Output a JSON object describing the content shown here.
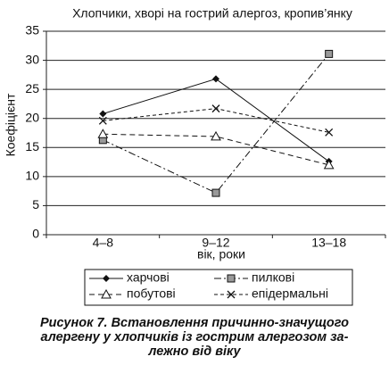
{
  "chart_data": {
    "type": "line",
    "title": "Хлопчики, хворі на гострий алергоз, кропив’янку",
    "x_label": "вік, роки",
    "y_label": "Коефіцієнт",
    "categories": [
      "4–8",
      "9–12",
      "13–18"
    ],
    "series": [
      {
        "name": "харчові",
        "color": "#111111",
        "values": [
          20.8,
          26.8,
          12.6
        ]
      },
      {
        "name": "пилкові",
        "color": "#111111",
        "values": [
          16.3,
          7.2,
          31.1
        ]
      },
      {
        "name": "побутові",
        "color": "#111111",
        "values": [
          17.3,
          16.9,
          12.0
        ]
      },
      {
        "name": "епідермальні",
        "color": "#111111",
        "values": [
          19.6,
          21.7,
          17.6
        ]
      }
    ],
    "ylim": [
      0,
      35
    ],
    "yticks": [
      0,
      5,
      10,
      15,
      20,
      25,
      30,
      35
    ],
    "grid": true
  },
  "caption": {
    "lines": [
      "Рисунок 7. Встановлення причинно-значущого",
      "алергену у хлопчиків із гострим алергозом за-",
      "лежно від віку"
    ]
  }
}
